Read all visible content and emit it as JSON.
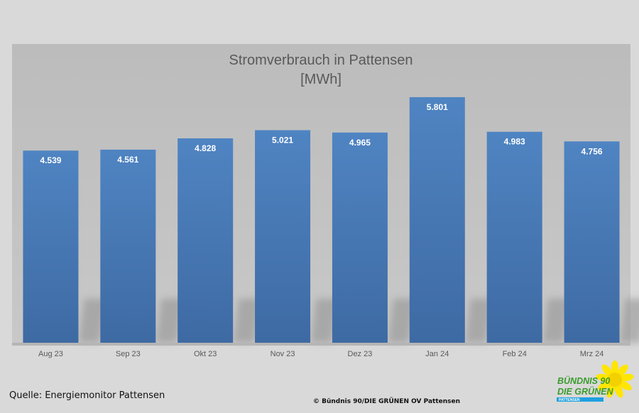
{
  "chart_data": {
    "type": "bar",
    "title": "Stromverbrauch in Pattensen",
    "subtitle": "[MWh]",
    "categories": [
      "Aug 23",
      "Sep 23",
      "Okt 23",
      "Nov 23",
      "Dez 23",
      "Jan 24",
      "Feb 24",
      "Mrz 24"
    ],
    "values": [
      4.539,
      4.561,
      4.828,
      5.021,
      4.965,
      5.801,
      4.983,
      4.756
    ],
    "value_labels": [
      "4.539",
      "4.561",
      "4.828",
      "5.021",
      "4.965",
      "5.801",
      "4.983",
      "4.756"
    ],
    "ylim": [
      0,
      6.2
    ],
    "grid": false,
    "legend": "none",
    "colors": {
      "bar": "#4a7ebb",
      "plot_background": "#c0c0c0",
      "page_background": "#d9d9d9",
      "value_label": "#ffffff"
    }
  },
  "footer": {
    "source": "Quelle: Energiemonitor Pattensen",
    "copyright": "© Bündnis 90/DIE GRÜNEN OV Pattensen"
  },
  "logo": {
    "line1": "BÜNDNIS 90",
    "line2": "DIE GRÜNEN",
    "tagline": "PATTENSEN",
    "icon": "sunflower-icon"
  }
}
